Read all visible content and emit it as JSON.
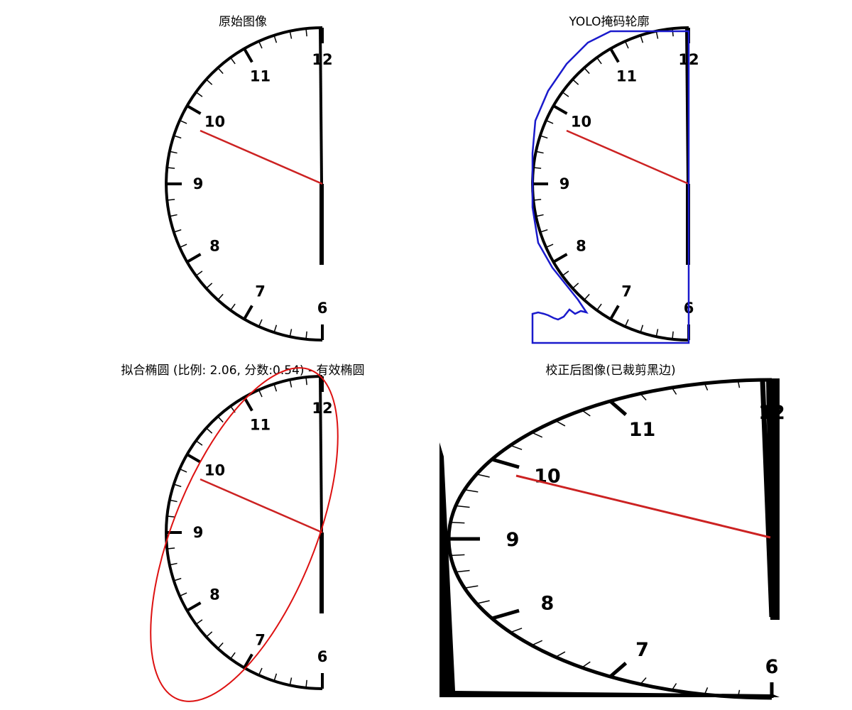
{
  "panels": {
    "original": {
      "title": "原始图像"
    },
    "yolo": {
      "title": "YOLO掩码轮廓"
    },
    "ellipse": {
      "title": "拟合椭圆 (比例: 2.06, 分数:0.54) - 有效椭圆"
    },
    "corrected": {
      "title": "校正后图像(已裁剪黑边)"
    }
  },
  "dial_numbers": [
    "12",
    "11",
    "10",
    "9",
    "8",
    "7",
    "6"
  ],
  "colors": {
    "hand": "#cc2222",
    "mask_contour": "#1a1acc",
    "ellipse": "#dd1111",
    "dial": "#000000"
  }
}
